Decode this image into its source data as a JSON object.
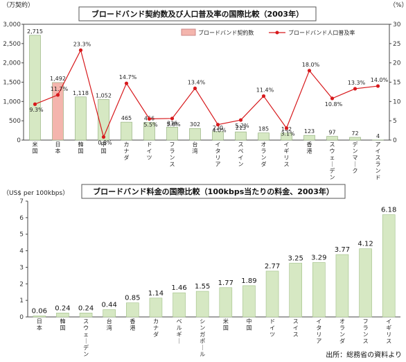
{
  "chart_data": [
    {
      "type": "bar",
      "title": "ブロードバンド契約数及び人口普及率の国際比較（2003年）",
      "ylabel_left": "（万契約）",
      "ylabel_right": "（%）",
      "ylim_left": [
        0,
        3000
      ],
      "ylim_right": [
        0,
        30
      ],
      "yticks_left": [
        "0",
        "500",
        "1,000",
        "1,500",
        "2,000",
        "2,500",
        "3,000"
      ],
      "yticks_right": [
        "0",
        "5",
        "10",
        "15",
        "20",
        "25",
        "30"
      ],
      "legend_placement": "top-right",
      "categories": [
        "米国",
        "日本",
        "韓国",
        "中国",
        "カナダ",
        "ドイツ",
        "フランス",
        "台湾",
        "イタリア",
        "スペイン",
        "オランダ",
        "イギリス",
        "香港",
        "スウェーデン",
        "デンマーク",
        "アイスランド"
      ],
      "series": [
        {
          "name": "ブロードバンド契約数",
          "type": "bar",
          "axis": "left",
          "values": [
            2715,
            1492,
            1118,
            1052,
            465,
            456,
            336,
            302,
            220,
            213,
            185,
            182,
            123,
            97,
            72,
            4
          ],
          "labels": [
            "2,715",
            "1,492",
            "1,118",
            "1,052",
            "465",
            "456",
            "336",
            "302",
            "220",
            "213",
            "185",
            "182",
            "123",
            "97",
            "72",
            "4"
          ]
        },
        {
          "name": "ブロードバンド人口普及率",
          "type": "line",
          "axis": "right",
          "values": [
            9.3,
            11.7,
            23.3,
            0.8,
            14.7,
            5.5,
            5.6,
            13.4,
            4.0,
            5.2,
            11.4,
            3.1,
            18.0,
            10.8,
            13.3,
            14.0
          ],
          "labels": [
            "9.3%",
            "11.7%",
            "23.3%",
            "0.8%",
            "14.7%",
            "5.5%",
            "5.6%",
            "13.4%",
            "4.0%",
            "5.2%",
            "11.4%",
            "3.1%",
            "18.0%",
            "10.8%",
            "13.3%",
            "14.0%"
          ]
        }
      ],
      "colors": {
        "bar": "#d6e8c3",
        "bar_highlight": "#f4b5ad",
        "line": "#d7191c"
      }
    },
    {
      "type": "bar",
      "title": "ブロードバンド料金の国際比較（100kbps当たりの料金、2003年）",
      "ylabel": "（US$ per 100kbps）",
      "ylim": [
        0,
        7
      ],
      "yticks": [
        "0",
        "1",
        "2",
        "3",
        "4",
        "5",
        "6",
        "7"
      ],
      "categories": [
        "日本",
        "韓国",
        "スウェーデン",
        "台湾",
        "香港",
        "カナダ",
        "ベルギー",
        "シンガポール",
        "米国",
        "中国",
        "ドイツ",
        "スイス",
        "イタリア",
        "オランダ",
        "フランス",
        "イギリス"
      ],
      "values": [
        0.06,
        0.24,
        0.24,
        0.44,
        0.85,
        1.14,
        1.46,
        1.55,
        1.77,
        1.89,
        2.77,
        3.25,
        3.29,
        3.77,
        4.12,
        6.18
      ],
      "labels": [
        "0.06",
        "0.24",
        "0.24",
        "0.44",
        "0.85",
        "1.14",
        "1.46",
        "1.55",
        "1.77",
        "1.89",
        "2.77",
        "3.25",
        "3.29",
        "3.77",
        "4.12",
        "6.18"
      ],
      "colors": {
        "bar": "#d6e8c3",
        "bar_stroke": "#9fbf86"
      }
    }
  ],
  "source": "出所：総務省の資料より"
}
